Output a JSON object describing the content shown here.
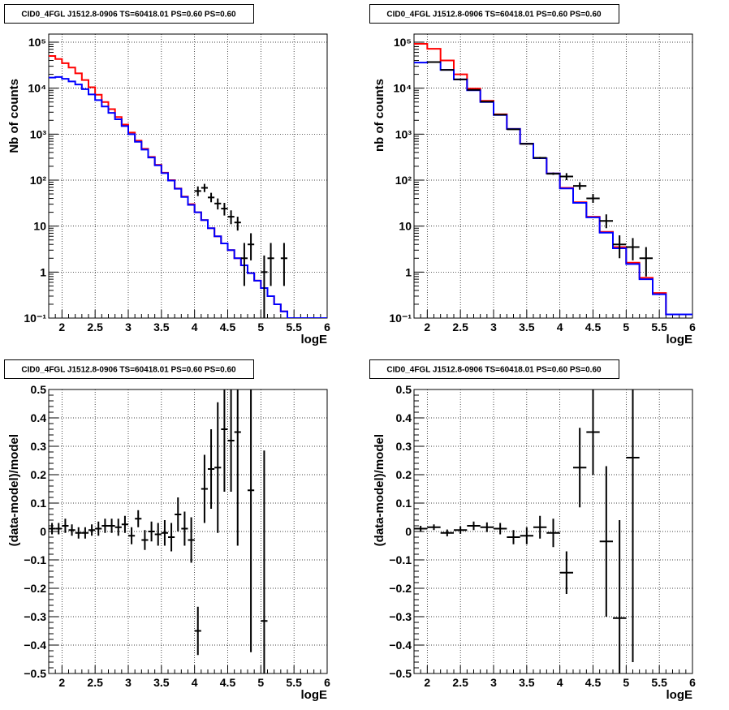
{
  "panels": [
    {
      "title": "CID0_4FGL J1512.8-0906 TS=60418.01 PS=0.60 PS=0.60",
      "chart_data": {
        "type": "line",
        "ylog": true,
        "xlim": [
          1.8,
          6.0
        ],
        "ylim": [
          0.1,
          150000
        ],
        "xlabel": "logE",
        "ylabel": "Nb of counts",
        "xticks": [
          2,
          2.5,
          3,
          3.5,
          4,
          4.5,
          5,
          5.5,
          6
        ],
        "xtick_labels": [
          "2",
          "2.5",
          "3",
          "3.5",
          "4",
          "4.5",
          "5",
          "5.5",
          "6"
        ],
        "yticks": [
          0.1,
          1,
          10,
          100,
          1000,
          10000,
          100000
        ],
        "ytick_labels": [
          "10⁻¹",
          "1",
          "10",
          "10²",
          "10³",
          "10⁴",
          "10⁵"
        ],
        "grid": true,
        "series": [
          {
            "color": "#ff0000",
            "kind": "step",
            "edges": [
              1.8,
              1.9,
              2.0,
              2.1,
              2.2,
              2.3,
              2.4,
              2.5,
              2.6,
              2.7,
              2.8,
              2.9,
              3.0,
              3.1,
              3.2,
              3.3,
              3.4,
              3.5,
              3.6,
              3.7,
              3.8,
              3.9,
              4.0,
              4.1,
              4.2,
              4.3,
              4.4,
              4.5,
              4.6,
              4.7,
              4.8,
              4.9,
              5.0,
              5.1,
              5.2,
              5.3,
              5.4,
              5.5,
              5.6,
              5.8,
              6.0
            ],
            "values": [
              50000,
              43000,
              35000,
              28000,
              21000,
              15000,
              10500,
              7200,
              5000,
              3500,
              2350,
              1620,
              1080,
              720,
              480,
              320,
              215,
              145,
              100,
              66,
              44,
              30,
              20,
              13.5,
              9,
              6,
              4.2,
              3,
              2,
              1.4,
              0.95,
              0.65,
              0.45,
              0.3,
              0.2,
              0.14,
              0.1,
              0.1,
              0.1,
              0.1
            ]
          },
          {
            "color": "#0000ff",
            "kind": "step",
            "edges": [
              1.8,
              1.9,
              2.0,
              2.1,
              2.2,
              2.3,
              2.4,
              2.5,
              2.6,
              2.7,
              2.8,
              2.9,
              3.0,
              3.1,
              3.2,
              3.3,
              3.4,
              3.5,
              3.6,
              3.7,
              3.8,
              3.9,
              4.0,
              4.1,
              4.2,
              4.3,
              4.4,
              4.5,
              4.6,
              4.7,
              4.8,
              4.9,
              5.0,
              5.1,
              5.2,
              5.3,
              5.4,
              5.5,
              5.6,
              5.8,
              6.0
            ],
            "values": [
              17000,
              17500,
              16000,
              14000,
              12000,
              9500,
              7300,
              5500,
              4000,
              2900,
              2100,
              1500,
              1000,
              680,
              460,
              310,
              210,
              142,
              98,
              65,
              43,
              29,
              20,
              13.5,
              9,
              6,
              4.2,
              3,
              2,
              1.4,
              0.95,
              0.65,
              0.45,
              0.3,
              0.2,
              0.14,
              0.1,
              0.1,
              0.1,
              0.1
            ]
          },
          {
            "color": "#000000",
            "kind": "points",
            "x": [
              4.05,
              4.15,
              4.25,
              4.35,
              4.45,
              4.55,
              4.65,
              4.75,
              4.85,
              5.05,
              5.15,
              5.35
            ],
            "y": [
              58,
              68,
              42,
              31,
              24,
              16,
              12,
              2,
              4,
              1,
              2,
              2
            ],
            "xerr": 0.05,
            "ylo": [
              45,
              55,
              33,
              23,
              17,
              11,
              8,
              0.5,
              1.8,
              0.05,
              0.5,
              0.5
            ],
            "yhi": [
              73,
              83,
              53,
              40,
              32,
              22,
              16,
              4.3,
              7,
              2.3,
              4.3,
              4.3
            ]
          }
        ]
      }
    },
    {
      "title": "CID0_4FGL J1512.8-0906 TS=60418.01 PS=0.60 PS=0.60",
      "chart_data": {
        "type": "line",
        "ylog": true,
        "xlim": [
          1.8,
          6.0
        ],
        "ylim": [
          0.1,
          150000
        ],
        "xlabel": "logE",
        "ylabel": "nb of counts",
        "xticks": [
          2,
          2.5,
          3,
          3.5,
          4,
          4.5,
          5,
          5.5,
          6
        ],
        "xtick_labels": [
          "2",
          "2.5",
          "3",
          "3.5",
          "4",
          "4.5",
          "5",
          "5.5",
          "6"
        ],
        "yticks": [
          0.1,
          1,
          10,
          100,
          1000,
          10000,
          100000
        ],
        "ytick_labels": [
          "10⁻¹",
          "1",
          "10",
          "10²",
          "10³",
          "10⁴",
          "10⁵"
        ],
        "grid": true,
        "series": [
          {
            "color": "#ff0000",
            "kind": "step",
            "edges": [
              1.8,
              2.0,
              2.2,
              2.4,
              2.6,
              2.8,
              3.0,
              3.2,
              3.4,
              3.6,
              3.8,
              4.0,
              4.2,
              4.4,
              4.6,
              4.8,
              5.0,
              5.2,
              5.4,
              5.6,
              6.0
            ],
            "values": [
              92000,
              72000,
              40000,
              20000,
              9800,
              5300,
              2700,
              1300,
              620,
              300,
              140,
              68,
              33,
              16,
              7.5,
              3.5,
              1.6,
              0.75,
              0.35,
              0.12
            ]
          },
          {
            "color": "#0000ff",
            "kind": "step",
            "edges": [
              1.8,
              2.0,
              2.2,
              2.4,
              2.6,
              2.8,
              3.0,
              3.2,
              3.4,
              3.6,
              3.8,
              4.0,
              4.2,
              4.4,
              4.6,
              4.8,
              5.0,
              5.2,
              5.4,
              5.6,
              6.0
            ],
            "values": [
              36000,
              37000,
              25000,
              15500,
              9000,
              5000,
              2600,
              1300,
              620,
              300,
              140,
              66,
              32,
              15.5,
              7.2,
              3.3,
              1.5,
              0.7,
              0.33,
              0.12
            ]
          },
          {
            "color": "#000000",
            "kind": "points",
            "x": [
              2.1,
              2.3,
              2.5,
              2.7,
              2.9,
              3.1,
              3.3,
              3.5,
              3.7,
              3.9,
              4.1,
              4.3,
              4.5,
              4.7,
              4.9,
              5.1,
              5.3
            ],
            "y": [
              37000,
              25000,
              15500,
              9200,
              5100,
              2650,
              1270,
              615,
              305,
              138,
              120,
              75,
              40,
              13,
              4,
              3.5,
              2
            ],
            "xerr": 0.1,
            "ylo": [
              36500,
              24600,
              15300,
              9050,
              5020,
              2600,
              1240,
              590,
              290,
              130,
              100,
              62,
              32,
              9,
              2,
              1.8,
              0.8
            ],
            "yhi": [
              37500,
              25400,
              15700,
              9350,
              5180,
              2700,
              1300,
              640,
              320,
              146,
              142,
              90,
              50,
              18,
              6.3,
              5.5,
              3.5
            ]
          }
        ]
      }
    },
    {
      "title": "CID0_4FGL J1512.8-0906 TS=60418.01 PS=0.60 PS=0.60",
      "chart_data": {
        "type": "scatter",
        "ylog": false,
        "xlim": [
          1.8,
          6.0
        ],
        "ylim": [
          -0.5,
          0.5
        ],
        "xlabel": "logE",
        "ylabel": "(data-model)/model",
        "xticks": [
          2,
          2.5,
          3,
          3.5,
          4,
          4.5,
          5,
          5.5,
          6
        ],
        "xtick_labels": [
          "2",
          "2.5",
          "3",
          "3.5",
          "4",
          "4.5",
          "5",
          "5.5",
          "6"
        ],
        "yticks": [
          -0.5,
          -0.4,
          -0.3,
          -0.2,
          -0.1,
          0,
          0.1,
          0.2,
          0.3,
          0.4,
          0.5
        ],
        "ytick_labels": [
          "−0.5",
          "−0.4",
          "−0.3",
          "−0.2",
          "−0.1",
          "0",
          "0.1",
          "0.2",
          "0.3",
          "0.4",
          "0.5"
        ],
        "grid": true,
        "series": [
          {
            "color": "#000000",
            "kind": "points",
            "x": [
              1.85,
              1.95,
              2.05,
              2.15,
              2.25,
              2.35,
              2.45,
              2.55,
              2.65,
              2.75,
              2.85,
              2.95,
              3.05,
              3.15,
              3.25,
              3.35,
              3.45,
              3.55,
              3.65,
              3.75,
              3.85,
              3.95,
              4.05,
              4.15,
              4.25,
              4.35,
              4.45,
              4.55,
              4.65,
              4.85,
              5.05
            ],
            "y": [
              0.01,
              0.01,
              0.02,
              0.005,
              -0.005,
              -0.005,
              0.005,
              0.01,
              0.02,
              0.02,
              0.015,
              0.025,
              -0.015,
              0.045,
              -0.03,
              0.0,
              -0.01,
              -0.005,
              -0.02,
              0.06,
              0.01,
              -0.03,
              -0.35,
              0.15,
              0.22,
              0.225,
              0.36,
              0.32,
              0.35,
              0.145,
              -0.315
            ],
            "xerr": 0.05,
            "yerr": [
              0.02,
              0.02,
              0.025,
              0.02,
              0.02,
              0.02,
              0.02,
              0.025,
              0.025,
              0.025,
              0.03,
              0.03,
              0.03,
              0.03,
              0.035,
              0.035,
              0.04,
              0.045,
              0.05,
              0.06,
              0.06,
              0.08,
              0.085,
              0.12,
              0.14,
              0.23,
              0.22,
              0.18,
              0.4,
              0.57,
              0.6
            ]
          }
        ]
      }
    },
    {
      "title": "CID0_4FGL J1512.8-0906 TS=60418.01 PS=0.60 PS=0.60",
      "chart_data": {
        "type": "scatter",
        "ylog": false,
        "xlim": [
          1.8,
          6.0
        ],
        "ylim": [
          -0.5,
          0.5
        ],
        "xlabel": "logE",
        "ylabel": "(data-model)/model",
        "xticks": [
          2,
          2.5,
          3,
          3.5,
          4,
          4.5,
          5,
          5.5,
          6
        ],
        "xtick_labels": [
          "2",
          "2.5",
          "3",
          "3.5",
          "4",
          "4.5",
          "5",
          "5.5",
          "6"
        ],
        "yticks": [
          -0.5,
          -0.4,
          -0.3,
          -0.2,
          -0.1,
          0,
          0.1,
          0.2,
          0.3,
          0.4,
          0.5
        ],
        "ytick_labels": [
          "−0.5",
          "−0.4",
          "−0.3",
          "−0.2",
          "−0.1",
          "0",
          "0.1",
          "0.2",
          "0.3",
          "0.4",
          "0.5"
        ],
        "grid": true,
        "series": [
          {
            "color": "#000000",
            "kind": "points",
            "x": [
              1.9,
              2.1,
              2.3,
              2.5,
              2.7,
              2.9,
              3.1,
              3.3,
              3.5,
              3.7,
              3.9,
              4.1,
              4.3,
              4.5,
              4.7,
              4.9,
              5.1
            ],
            "y": [
              0.01,
              0.015,
              -0.005,
              0.005,
              0.02,
              0.015,
              0.01,
              -0.02,
              -0.015,
              0.015,
              -0.005,
              -0.145,
              0.225,
              0.35,
              -0.035,
              -0.305,
              0.26
            ],
            "xerr": 0.1,
            "yerr": [
              0.01,
              0.01,
              0.012,
              0.013,
              0.015,
              0.017,
              0.02,
              0.025,
              0.03,
              0.04,
              0.05,
              0.075,
              0.14,
              0.15,
              0.265,
              0.345,
              0.72
            ]
          }
        ]
      }
    }
  ]
}
